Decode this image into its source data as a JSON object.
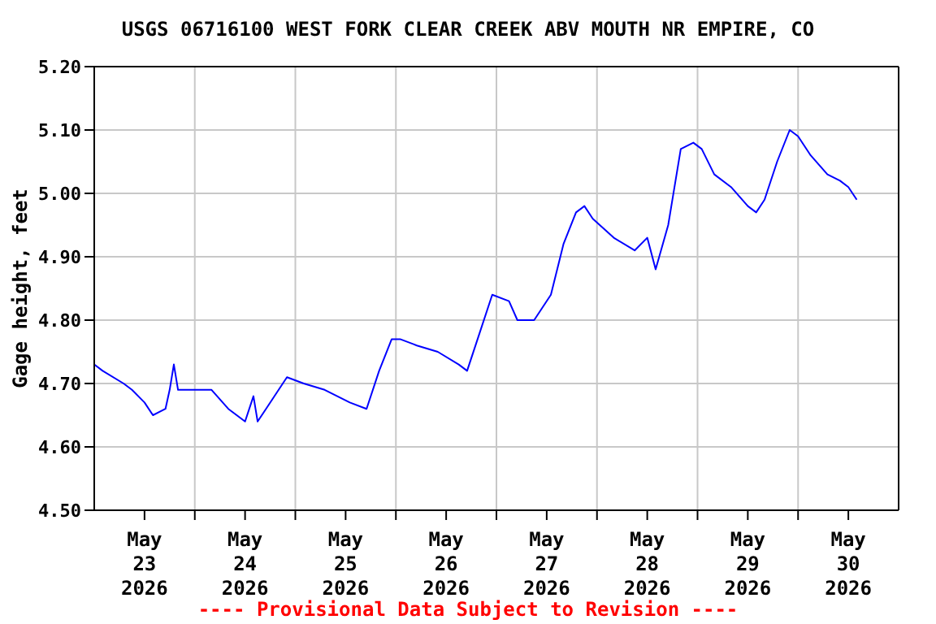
{
  "chart_data": {
    "type": "line",
    "title": "USGS 06716100 WEST FORK CLEAR CREEK ABV MOUTH NR EMPIRE, CO",
    "ylabel": "Gage height, feet",
    "annotations": [
      "---- Provisional Data Subject to Revision ----"
    ],
    "x": [
      "2026-05-23T00:00",
      "2026-05-23T02:00",
      "2026-05-23T07:00",
      "2026-05-23T09:00",
      "2026-05-23T12:00",
      "2026-05-23T14:00",
      "2026-05-23T17:00",
      "2026-05-23T18:00",
      "2026-05-23T19:00",
      "2026-05-23T20:00",
      "2026-05-24T00:00",
      "2026-05-24T04:00",
      "2026-05-24T08:00",
      "2026-05-24T12:00",
      "2026-05-24T14:00",
      "2026-05-24T15:00",
      "2026-05-24T17:00",
      "2026-05-24T22:00",
      "2026-05-25T02:00",
      "2026-05-25T07:00",
      "2026-05-25T13:00",
      "2026-05-25T17:00",
      "2026-05-25T20:00",
      "2026-05-25T23:00",
      "2026-05-26T01:00",
      "2026-05-26T05:00",
      "2026-05-26T10:00",
      "2026-05-26T15:00",
      "2026-05-26T17:00",
      "2026-05-26T20:00",
      "2026-05-26T23:00",
      "2026-05-27T03:00",
      "2026-05-27T05:00",
      "2026-05-27T09:00",
      "2026-05-27T13:00",
      "2026-05-27T16:00",
      "2026-05-27T19:00",
      "2026-05-27T21:00",
      "2026-05-27T23:00",
      "2026-05-28T04:00",
      "2026-05-28T09:00",
      "2026-05-28T12:00",
      "2026-05-28T14:00",
      "2026-05-28T17:00",
      "2026-05-28T20:00",
      "2026-05-28T23:00",
      "2026-05-29T01:00",
      "2026-05-29T04:00",
      "2026-05-29T08:00",
      "2026-05-29T12:00",
      "2026-05-29T14:00",
      "2026-05-29T16:00",
      "2026-05-29T19:00",
      "2026-05-29T22:00",
      "2026-05-30T00:00",
      "2026-05-30T03:00",
      "2026-05-30T07:00",
      "2026-05-30T10:00",
      "2026-05-30T12:00",
      "2026-05-30T13:00",
      "2026-05-30T14:00"
    ],
    "series": [
      {
        "color": "#0000ff",
        "values": [
          4.73,
          4.72,
          4.7,
          4.69,
          4.67,
          4.65,
          4.66,
          4.69,
          4.73,
          4.69,
          4.69,
          4.69,
          4.66,
          4.64,
          4.68,
          4.64,
          4.66,
          4.71,
          4.7,
          4.69,
          4.67,
          4.66,
          4.72,
          4.77,
          4.77,
          4.76,
          4.75,
          4.73,
          4.72,
          4.78,
          4.84,
          4.83,
          4.8,
          4.8,
          4.84,
          4.92,
          4.97,
          4.98,
          4.96,
          4.93,
          4.91,
          4.93,
          4.88,
          4.95,
          5.07,
          5.08,
          5.07,
          5.03,
          5.01,
          4.98,
          4.97,
          4.99,
          5.05,
          5.1,
          5.09,
          5.06,
          5.03,
          5.02,
          5.01,
          5.0,
          4.99
        ]
      }
    ],
    "xlim": [
      "2026-05-23T00:00",
      "2026-05-31T00:00"
    ],
    "xticks": [
      {
        "value": "2026-05-23T12:00",
        "label": "May\n23\n2026"
      },
      {
        "value": "2026-05-24T00:00",
        "label": null
      },
      {
        "value": "2026-05-24T12:00",
        "label": "May\n24\n2026"
      },
      {
        "value": "2026-05-25T00:00",
        "label": null
      },
      {
        "value": "2026-05-25T12:00",
        "label": "May\n25\n2026"
      },
      {
        "value": "2026-05-26T00:00",
        "label": null
      },
      {
        "value": "2026-05-26T12:00",
        "label": "May\n26\n2026"
      },
      {
        "value": "2026-05-27T00:00",
        "label": null
      },
      {
        "value": "2026-05-27T12:00",
        "label": "May\n27\n2026"
      },
      {
        "value": "2026-05-28T00:00",
        "label": null
      },
      {
        "value": "2026-05-28T12:00",
        "label": "May\n28\n2026"
      },
      {
        "value": "2026-05-29T00:00",
        "label": null
      },
      {
        "value": "2026-05-29T12:00",
        "label": "May\n29\n2026"
      },
      {
        "value": "2026-05-30T00:00",
        "label": null
      },
      {
        "value": "2026-05-30T12:00",
        "label": "May\n30\n2026"
      }
    ],
    "ylim": [
      4.5,
      5.2
    ],
    "yticks": [
      {
        "value": 4.5,
        "label": "4.50"
      },
      {
        "value": 4.6,
        "label": "4.60"
      },
      {
        "value": 4.7,
        "label": "4.70"
      },
      {
        "value": 4.8,
        "label": "4.80"
      },
      {
        "value": 4.9,
        "label": "4.90"
      },
      {
        "value": 5.0,
        "label": "5.00"
      },
      {
        "value": 5.1,
        "label": "5.10"
      },
      {
        "value": 5.2,
        "label": "5.20"
      }
    ],
    "grid": true,
    "legend": false,
    "marker": "none",
    "line_style": "solid"
  }
}
